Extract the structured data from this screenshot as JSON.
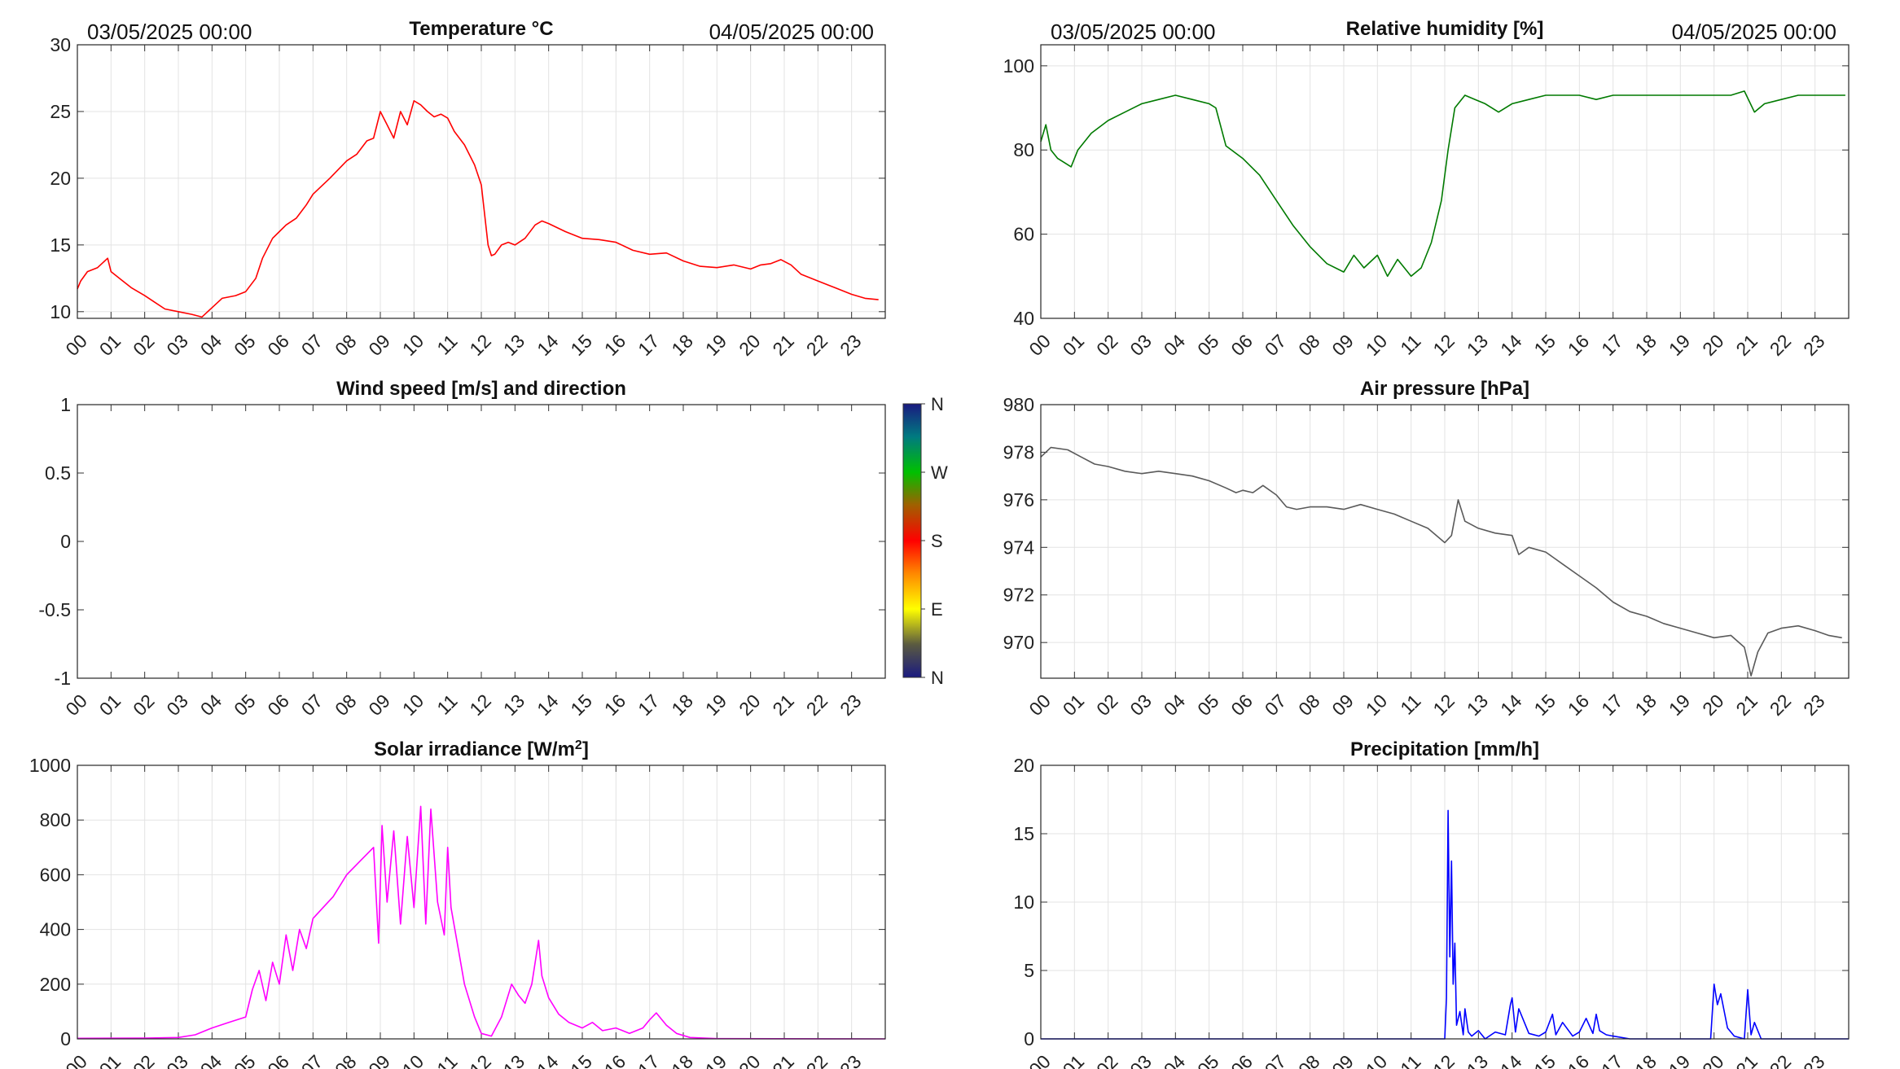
{
  "header": {
    "left": {
      "start_label": "03/05/2025 00:00",
      "end_label": "04/05/2025 00:00"
    },
    "right": {
      "start_label": "03/05/2025 00:00",
      "end_label": "04/05/2025 00:00"
    }
  },
  "chart_data": [
    {
      "id": "temperature",
      "type": "line",
      "title": "Temperature °C",
      "color": "#ff0000",
      "ylim": [
        9.5,
        30
      ],
      "yticks": [
        10,
        15,
        20,
        25,
        30
      ],
      "xlim": [
        0,
        24
      ],
      "xtick_labels": [
        "00",
        "01",
        "02",
        "03",
        "04",
        "05",
        "06",
        "07",
        "08",
        "09",
        "10",
        "11",
        "12",
        "13",
        "14",
        "15",
        "16",
        "17",
        "18",
        "19",
        "20",
        "21",
        "22",
        "23"
      ],
      "grid": true,
      "x": [
        0,
        0.1,
        0.3,
        0.6,
        0.9,
        1.0,
        1.3,
        1.6,
        2.0,
        2.3,
        2.6,
        3.0,
        3.4,
        3.7,
        4.0,
        4.3,
        4.7,
        5.0,
        5.3,
        5.5,
        5.8,
        6.0,
        6.2,
        6.5,
        6.8,
        7.0,
        7.5,
        8.0,
        8.3,
        8.6,
        8.8,
        9.0,
        9.2,
        9.4,
        9.6,
        9.8,
        10.0,
        10.2,
        10.4,
        10.6,
        10.8,
        11.0,
        11.2,
        11.5,
        11.8,
        12.0,
        12.2,
        12.3,
        12.4,
        12.6,
        12.8,
        13.0,
        13.3,
        13.6,
        13.8,
        14.0,
        14.5,
        15.0,
        15.5,
        16.0,
        16.5,
        17.0,
        17.5,
        18.0,
        18.5,
        19.0,
        19.5,
        20.0,
        20.3,
        20.6,
        20.9,
        21.2,
        21.5,
        22.0,
        22.5,
        23.0,
        23.4,
        23.8
      ],
      "values": [
        11.7,
        12.3,
        13.0,
        13.3,
        14.0,
        13.0,
        12.4,
        11.8,
        11.2,
        10.7,
        10.2,
        10.0,
        9.8,
        9.6,
        10.3,
        11.0,
        11.2,
        11.5,
        12.5,
        14.0,
        15.5,
        16.0,
        16.5,
        17.0,
        18.0,
        18.8,
        20.0,
        21.3,
        21.8,
        22.8,
        23.0,
        25.0,
        24.0,
        23.0,
        25.0,
        24.0,
        25.8,
        25.5,
        25.0,
        24.6,
        24.8,
        24.5,
        23.5,
        22.5,
        21.0,
        19.5,
        15.0,
        14.2,
        14.3,
        15.0,
        15.2,
        15.0,
        15.5,
        16.5,
        16.8,
        16.6,
        16.0,
        15.5,
        15.4,
        15.2,
        14.6,
        14.3,
        14.4,
        13.8,
        13.4,
        13.3,
        13.5,
        13.2,
        13.5,
        13.6,
        13.9,
        13.5,
        12.8,
        12.3,
        11.8,
        11.3,
        11.0,
        10.9
      ]
    },
    {
      "id": "humidity",
      "type": "line",
      "title": "Relative humidity [%]",
      "color": "#007a00",
      "ylim": [
        40,
        105
      ],
      "yticks": [
        40,
        60,
        80,
        100
      ],
      "xlim": [
        0,
        24
      ],
      "xtick_labels": [
        "00",
        "01",
        "02",
        "03",
        "04",
        "05",
        "06",
        "07",
        "08",
        "09",
        "10",
        "11",
        "12",
        "13",
        "14",
        "15",
        "16",
        "17",
        "18",
        "19",
        "20",
        "21",
        "22",
        "23"
      ],
      "grid": true,
      "x": [
        0,
        0.15,
        0.3,
        0.5,
        0.7,
        0.9,
        1.1,
        1.5,
        2.0,
        2.5,
        3.0,
        3.5,
        4.0,
        4.5,
        5.0,
        5.2,
        5.5,
        6.0,
        6.5,
        7.0,
        7.5,
        8.0,
        8.5,
        9.0,
        9.3,
        9.6,
        10.0,
        10.3,
        10.6,
        11.0,
        11.3,
        11.6,
        11.9,
        12.1,
        12.3,
        12.6,
        12.9,
        13.2,
        13.6,
        14.0,
        14.5,
        15.0,
        15.5,
        16.0,
        16.5,
        17.0,
        17.5,
        18.0,
        18.5,
        19.0,
        19.5,
        20.0,
        20.5,
        20.9,
        21.2,
        21.5,
        22.0,
        22.5,
        23.0,
        23.5,
        23.9
      ],
      "values": [
        82,
        86,
        80,
        78,
        77,
        76,
        80,
        84,
        87,
        89,
        91,
        92,
        93,
        92,
        91,
        90,
        81,
        78,
        74,
        68,
        62,
        57,
        53,
        51,
        55,
        52,
        55,
        50,
        54,
        50,
        52,
        58,
        68,
        80,
        90,
        93,
        92,
        91,
        89,
        91,
        92,
        93,
        93,
        93,
        92,
        93,
        93,
        93,
        93,
        93,
        93,
        93,
        93,
        94,
        89,
        91,
        92,
        93,
        93,
        93,
        93
      ]
    },
    {
      "id": "wind",
      "type": "scatter",
      "title": "Wind speed [m/s] and direction",
      "ylim": [
        -1,
        1
      ],
      "yticks": [
        -1,
        -0.5,
        0,
        0.5,
        1
      ],
      "ytick_labels": [
        "-1",
        "-0.5",
        "0",
        "0.5",
        "1"
      ],
      "xlim": [
        0,
        24
      ],
      "xtick_labels": [
        "00",
        "01",
        "02",
        "03",
        "04",
        "05",
        "06",
        "07",
        "08",
        "09",
        "10",
        "11",
        "12",
        "13",
        "14",
        "15",
        "16",
        "17",
        "18",
        "19",
        "20",
        "21",
        "22",
        "23"
      ],
      "grid": false,
      "values": [],
      "colorbar": {
        "tick_labels": [
          "N",
          "E",
          "S",
          "W",
          "N"
        ],
        "colors": [
          "#1a1a80",
          "#ffff00",
          "#ff0000",
          "#00c000",
          "#1a1a80"
        ]
      }
    },
    {
      "id": "pressure",
      "type": "line",
      "title": "Air pressure [hPa]",
      "color": "#5a5a5a",
      "ylim": [
        968.5,
        980
      ],
      "yticks": [
        970,
        972,
        974,
        976,
        978,
        980
      ],
      "xlim": [
        0,
        24
      ],
      "xtick_labels": [
        "00",
        "01",
        "02",
        "03",
        "04",
        "05",
        "06",
        "07",
        "08",
        "09",
        "10",
        "11",
        "12",
        "13",
        "14",
        "15",
        "16",
        "17",
        "18",
        "19",
        "20",
        "21",
        "22",
        "23"
      ],
      "grid": true,
      "x": [
        0,
        0.3,
        0.8,
        1.2,
        1.6,
        2.0,
        2.5,
        3.0,
        3.5,
        4.0,
        4.5,
        5.0,
        5.5,
        5.8,
        6.0,
        6.3,
        6.6,
        7.0,
        7.3,
        7.6,
        8.0,
        8.5,
        9.0,
        9.5,
        10.0,
        10.5,
        11.0,
        11.5,
        12.0,
        12.2,
        12.4,
        12.6,
        13.0,
        13.5,
        14.0,
        14.2,
        14.5,
        15.0,
        15.5,
        16.0,
        16.5,
        17.0,
        17.5,
        18.0,
        18.5,
        19.0,
        19.5,
        20.0,
        20.5,
        20.9,
        21.1,
        21.3,
        21.6,
        22.0,
        22.5,
        23.0,
        23.4,
        23.8
      ],
      "values": [
        977.8,
        978.2,
        978.1,
        977.8,
        977.5,
        977.4,
        977.2,
        977.1,
        977.2,
        977.1,
        977.0,
        976.8,
        976.5,
        976.3,
        976.4,
        976.3,
        976.6,
        976.2,
        975.7,
        975.6,
        975.7,
        975.7,
        975.6,
        975.8,
        975.6,
        975.4,
        975.1,
        974.8,
        974.2,
        974.5,
        976.0,
        975.1,
        974.8,
        974.6,
        974.5,
        973.7,
        974.0,
        973.8,
        973.3,
        972.8,
        972.3,
        971.7,
        971.3,
        971.1,
        970.8,
        970.6,
        970.4,
        970.2,
        970.3,
        969.8,
        968.6,
        969.6,
        970.4,
        970.6,
        970.7,
        970.5,
        970.3,
        970.2
      ]
    },
    {
      "id": "solar",
      "type": "line",
      "title": "Solar irradiance [W/m",
      "title_sup": "2",
      "title_end": "]",
      "color": "#ff00ff",
      "ylim": [
        0,
        1000
      ],
      "yticks": [
        0,
        200,
        400,
        600,
        800,
        1000
      ],
      "xlim": [
        0,
        24
      ],
      "xtick_labels": [
        "00",
        "01",
        "02",
        "03",
        "04",
        "05",
        "06",
        "07",
        "08",
        "09",
        "10",
        "11",
        "12",
        "13",
        "14",
        "15",
        "16",
        "17",
        "18",
        "19",
        "20",
        "21",
        "22",
        "23"
      ],
      "grid": true,
      "x": [
        0,
        2.0,
        3.0,
        3.5,
        4.0,
        4.5,
        5.0,
        5.2,
        5.4,
        5.6,
        5.8,
        6.0,
        6.2,
        6.4,
        6.6,
        6.8,
        7.0,
        7.3,
        7.6,
        8.0,
        8.4,
        8.8,
        8.95,
        9.05,
        9.2,
        9.4,
        9.6,
        9.8,
        10.0,
        10.2,
        10.35,
        10.5,
        10.7,
        10.9,
        11.0,
        11.1,
        11.3,
        11.5,
        11.8,
        12.0,
        12.3,
        12.6,
        12.9,
        13.1,
        13.3,
        13.5,
        13.7,
        13.8,
        14.0,
        14.3,
        14.6,
        15.0,
        15.3,
        15.6,
        16.0,
        16.4,
        16.8,
        17.0,
        17.2,
        17.5,
        17.8,
        18.2,
        19.0,
        24.0
      ],
      "values": [
        2,
        3,
        5,
        15,
        40,
        60,
        80,
        180,
        250,
        140,
        280,
        200,
        380,
        250,
        400,
        330,
        440,
        480,
        520,
        600,
        650,
        700,
        350,
        780,
        500,
        760,
        420,
        740,
        480,
        850,
        420,
        840,
        500,
        380,
        700,
        480,
        340,
        200,
        80,
        20,
        10,
        80,
        200,
        160,
        130,
        200,
        360,
        230,
        150,
        90,
        60,
        40,
        60,
        30,
        40,
        20,
        40,
        70,
        95,
        50,
        20,
        5,
        1,
        0
      ]
    },
    {
      "id": "precipitation",
      "type": "line",
      "title": "Precipitation [mm/h]",
      "color": "#0000ff",
      "ylim": [
        0,
        20
      ],
      "yticks": [
        0,
        5,
        10,
        15,
        20
      ],
      "xlim": [
        0,
        24
      ],
      "xtick_labels": [
        "00",
        "01",
        "02",
        "03",
        "04",
        "05",
        "06",
        "07",
        "08",
        "09",
        "10",
        "11",
        "12",
        "13",
        "14",
        "15",
        "16",
        "17",
        "18",
        "19",
        "20",
        "21",
        "22",
        "23"
      ],
      "grid": true,
      "x": [
        0,
        12.0,
        12.05,
        12.1,
        12.15,
        12.2,
        12.25,
        12.3,
        12.35,
        12.45,
        12.55,
        12.6,
        12.7,
        12.8,
        13.0,
        13.2,
        13.5,
        13.8,
        13.95,
        14.0,
        14.1,
        14.2,
        14.5,
        14.8,
        15.0,
        15.2,
        15.3,
        15.5,
        15.8,
        16.0,
        16.2,
        16.4,
        16.5,
        16.6,
        16.8,
        17.0,
        17.5,
        19.9,
        20.0,
        20.1,
        20.2,
        20.4,
        20.6,
        20.9,
        21.0,
        21.1,
        21.2,
        21.4,
        24.0
      ],
      "values": [
        0,
        0,
        3,
        16.7,
        6,
        13,
        4,
        7,
        1,
        2,
        0.3,
        2.2,
        0.5,
        0.2,
        0.6,
        0,
        0.5,
        0.3,
        2.5,
        3.0,
        0.5,
        2.2,
        0.4,
        0.2,
        0.5,
        1.8,
        0.3,
        1.2,
        0.2,
        0.5,
        1.5,
        0.4,
        1.8,
        0.6,
        0.3,
        0.2,
        0,
        0,
        4.0,
        2.5,
        3.3,
        0.8,
        0.2,
        0,
        3.6,
        0.3,
        1.2,
        0,
        0
      ]
    }
  ]
}
